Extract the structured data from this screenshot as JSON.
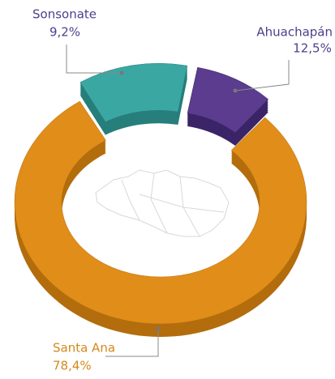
{
  "chart_data": {
    "type": "pie",
    "style": "3d-donut",
    "categories": [
      "Santa Ana",
      "Ahuachapán",
      "Sonsonate"
    ],
    "values": [
      78.4,
      12.5,
      9.2
    ],
    "value_labels": [
      "78,4%",
      "12,5%",
      "9,2%"
    ],
    "colors": [
      "#e08d19",
      "#3aa7a3",
      "#5b3c8e"
    ],
    "side_colors": [
      "#b36d0c",
      "#277e7a",
      "#3b2467"
    ],
    "label_colors": [
      "#d4891a",
      "#4b3f8c",
      "#4b3f8c"
    ]
  }
}
